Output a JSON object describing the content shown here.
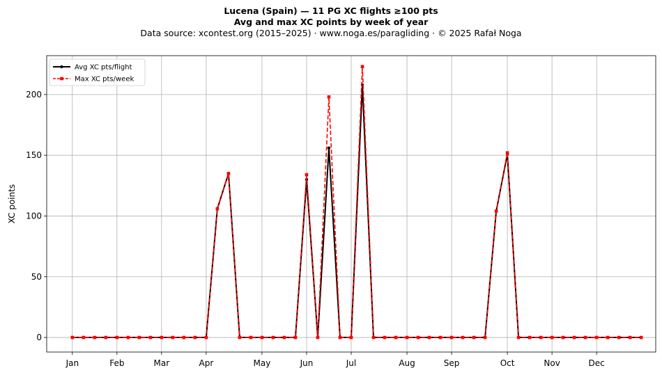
{
  "titles": {
    "line1": "Lucena (Spain)  —  11 PG XC flights ≥100 pts",
    "line2": "Avg and max XC points by week of year",
    "line3": "Data source: xcontest.org (2015–2025)  ·  www.noga.es/paragliding  ·  © 2025 Rafał Noga"
  },
  "chart_data": {
    "type": "line",
    "title": "Lucena (Spain)  —  11 PG XC flights ≥100 pts",
    "subtitle": "Avg and max XC points by week of year",
    "xlabel": "",
    "ylabel": "XC points",
    "x_ticks": [
      {
        "label": "Jan",
        "x": 1
      },
      {
        "label": "Feb",
        "x": 5
      },
      {
        "label": "Mar",
        "x": 9
      },
      {
        "label": "Apr",
        "x": 13
      },
      {
        "label": "May",
        "x": 18
      },
      {
        "label": "Jun",
        "x": 22
      },
      {
        "label": "Jul",
        "x": 26
      },
      {
        "label": "Aug",
        "x": 31
      },
      {
        "label": "Sep",
        "x": 35
      },
      {
        "label": "Oct",
        "x": 40
      },
      {
        "label": "Nov",
        "x": 44
      },
      {
        "label": "Dec",
        "x": 48
      }
    ],
    "y_ticks": [
      0,
      50,
      100,
      150,
      200
    ],
    "xlim": [
      -1.3,
      53.3
    ],
    "ylim": [
      -12,
      232
    ],
    "grid": true,
    "legend_position": "top-left",
    "x": [
      1,
      2,
      3,
      4,
      5,
      6,
      7,
      8,
      9,
      10,
      11,
      12,
      13,
      14,
      15,
      16,
      17,
      18,
      19,
      20,
      21,
      22,
      23,
      24,
      25,
      26,
      27,
      28,
      29,
      30,
      31,
      32,
      33,
      34,
      35,
      36,
      37,
      38,
      39,
      40,
      41,
      42,
      43,
      44,
      45,
      46,
      47,
      48,
      49,
      50,
      51,
      52
    ],
    "series": [
      {
        "name": "Avg XC pts/flight",
        "color": "#000000",
        "style": "solid",
        "marker": "circle",
        "values": [
          0,
          0,
          0,
          0,
          0,
          0,
          0,
          0,
          0,
          0,
          0,
          0,
          0,
          106,
          135,
          0,
          0,
          0,
          0,
          0,
          0,
          130,
          0,
          156,
          0,
          0,
          208,
          0,
          0,
          0,
          0,
          0,
          0,
          0,
          0,
          0,
          0,
          0,
          104,
          151,
          0,
          0,
          0,
          0,
          0,
          0,
          0,
          0,
          0,
          0,
          0,
          0
        ]
      },
      {
        "name": "Max XC pts/week",
        "color": "#ff0000",
        "style": "dashed",
        "marker": "square",
        "values": [
          0,
          0,
          0,
          0,
          0,
          0,
          0,
          0,
          0,
          0,
          0,
          0,
          0,
          106,
          135,
          0,
          0,
          0,
          0,
          0,
          0,
          134,
          0,
          198,
          0,
          0,
          223,
          0,
          0,
          0,
          0,
          0,
          0,
          0,
          0,
          0,
          0,
          0,
          104,
          152,
          0,
          0,
          0,
          0,
          0,
          0,
          0,
          0,
          0,
          0,
          0,
          0
        ]
      }
    ]
  }
}
